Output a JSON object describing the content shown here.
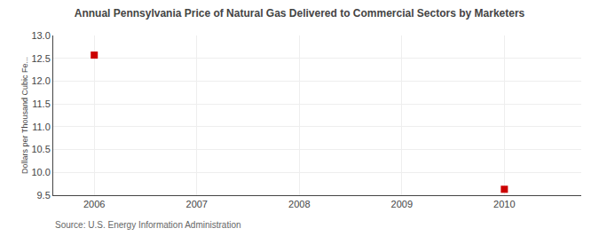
{
  "chart_data": {
    "type": "scatter",
    "title": "Annual Pennsylvania Price of Natural Gas Delivered to Commercial Sectors by Marketers",
    "ylabel": "Dollars per Thousand Cubic Fe...",
    "source": "Source: U.S. Energy Information Administration",
    "x": [
      2006,
      2010
    ],
    "values": [
      12.57,
      9.63
    ],
    "color": "#cc0000",
    "marker": "square",
    "xlim": [
      2005.6,
      2010.75
    ],
    "xticks": [
      2006,
      2007,
      2008,
      2009,
      2010
    ],
    "ylim": [
      9.5,
      13.0
    ],
    "yticks": [
      9.5,
      {
        "value": 10.0,
        "label": "10.0"
      },
      10.5,
      {
        "value": 11.0,
        "label": "11.0"
      },
      11.5,
      {
        "value": 12.0,
        "label": "12.0"
      },
      12.5,
      {
        "value": 13.0,
        "label": "13.0"
      }
    ],
    "grid": true
  }
}
